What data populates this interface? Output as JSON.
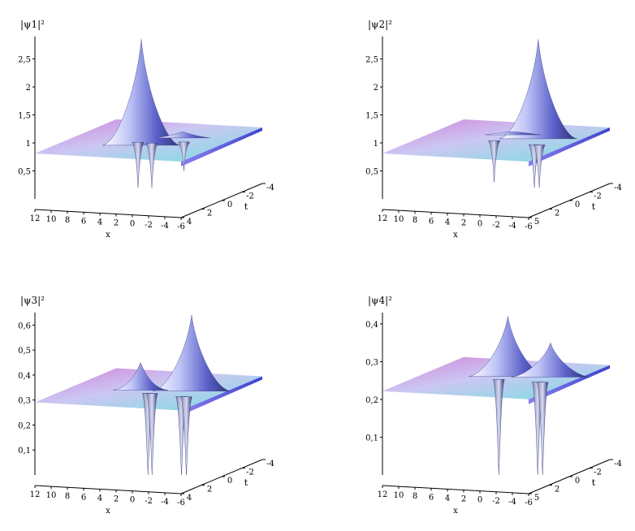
{
  "colors": {
    "axis": "#000000",
    "surface_light": "#f4f6ff",
    "surface_mid": "#8c92ee",
    "surface_dark": "#2b2f6e",
    "back_edge": "#c86ad0",
    "front_edge": "#6fe0e0",
    "right_edge": "#4b4fd0"
  },
  "chart_data": [
    {
      "type": "surface3d",
      "zlabel": "|ψ1|²",
      "xlabel": "x",
      "tlabel": "t",
      "x_ticks": [
        "12",
        "10",
        "8",
        "6",
        "4",
        "2",
        "0",
        "-2",
        "-4",
        "-6"
      ],
      "t_ticks": [
        "4",
        "2",
        "0",
        "-2",
        "-4"
      ],
      "z_ticks": [
        "0,5",
        "1",
        "1,5",
        "2",
        "2,5"
      ],
      "xlim": [
        12,
        -6
      ],
      "tlim": [
        4,
        -4
      ],
      "zlim": [
        0,
        2.9
      ],
      "base_level": 1,
      "features": [
        {
          "kind": "peak",
          "x": 3.4,
          "t": 0.4,
          "value": 2.85
        },
        {
          "kind": "dip",
          "x": 4.3,
          "t": 0.0,
          "value": 0.2
        },
        {
          "kind": "dip",
          "x": 2.6,
          "t": 0.0,
          "value": 0.2
        },
        {
          "kind": "bump",
          "x": 0.8,
          "t": -1.6,
          "value": 1.2
        },
        {
          "kind": "dip",
          "x": -0.6,
          "t": -0.6,
          "value": 0.5
        }
      ]
    },
    {
      "type": "surface3d",
      "zlabel": "|ψ2|²",
      "xlabel": "x",
      "tlabel": "t",
      "x_ticks": [
        "12",
        "10",
        "8",
        "6",
        "4",
        "2",
        "0",
        "-2",
        "-4",
        "-6"
      ],
      "t_ticks": [
        "5",
        "2",
        "0",
        "-2",
        "-4"
      ],
      "z_ticks": [
        "0,5",
        "1",
        "1,5",
        "2",
        "2,5"
      ],
      "xlim": [
        12,
        -6
      ],
      "tlim": [
        5,
        -4
      ],
      "zlim": [
        0,
        2.9
      ],
      "base_level": 1,
      "features": [
        {
          "kind": "peak",
          "x": -0.3,
          "t": -1.2,
          "value": 2.85
        },
        {
          "kind": "dip",
          "x": 3.8,
          "t": 0.0,
          "value": 0.3
        },
        {
          "kind": "dip",
          "x": -1.6,
          "t": 0.4,
          "value": 0.2
        },
        {
          "kind": "dip",
          "x": -2.2,
          "t": 0.4,
          "value": 0.2
        },
        {
          "kind": "bump",
          "x": 3.5,
          "t": -1.8,
          "value": 1.2
        }
      ]
    },
    {
      "type": "surface3d",
      "zlabel": "|ψ3|²",
      "xlabel": "x",
      "tlabel": "t",
      "x_ticks": [
        "12",
        "10",
        "8",
        "6",
        "4",
        "2",
        "0",
        "-2",
        "-4",
        "-6"
      ],
      "t_ticks": [
        "4",
        "2",
        "0",
        "-2",
        "-4"
      ],
      "z_ticks": [
        "0,1",
        "0,2",
        "0,3",
        "0,4",
        "0,5",
        "0,6"
      ],
      "xlim": [
        12,
        -6
      ],
      "tlim": [
        4,
        -4
      ],
      "zlim": [
        0,
        0.65
      ],
      "base_level": 0.333,
      "features": [
        {
          "kind": "peak",
          "x": -1.3,
          "t": -0.8,
          "value": 0.64
        },
        {
          "kind": "bump",
          "x": 4.5,
          "t": -0.4,
          "value": 0.45
        },
        {
          "kind": "dip",
          "x": 2.7,
          "t": 0.3,
          "value": 0.0
        },
        {
          "kind": "dip",
          "x": 2.2,
          "t": 0.3,
          "value": 0.0
        },
        {
          "kind": "dip",
          "x": -1.8,
          "t": 0.6,
          "value": 0.0
        },
        {
          "kind": "dip",
          "x": -2.4,
          "t": 0.6,
          "value": 0.0
        }
      ]
    },
    {
      "type": "surface3d",
      "zlabel": "|ψ4|²",
      "xlabel": "x",
      "tlabel": "t",
      "x_ticks": [
        "12",
        "10",
        "8",
        "6",
        "4",
        "2",
        "0",
        "-2",
        "-4",
        "-6"
      ],
      "t_ticks": [
        "5",
        "2",
        "0",
        "-2",
        "-4"
      ],
      "z_ticks": [
        "0,1",
        "0,2",
        "0,3",
        "0,4"
      ],
      "xlim": [
        12,
        -6
      ],
      "tlim": [
        5,
        -4
      ],
      "zlim": [
        0,
        0.43
      ],
      "base_level": 0.25,
      "features": [
        {
          "kind": "peak",
          "x": 3.0,
          "t": -0.8,
          "value": 0.42
        },
        {
          "kind": "peak",
          "x": -1.8,
          "t": -1.2,
          "value": 0.35
        },
        {
          "kind": "dip",
          "x": 3.0,
          "t": 0.2,
          "value": 0.0
        },
        {
          "kind": "dip",
          "x": -1.9,
          "t": 0.3,
          "value": 0.0
        },
        {
          "kind": "dip",
          "x": -2.5,
          "t": 0.3,
          "value": 0.0
        }
      ]
    }
  ]
}
